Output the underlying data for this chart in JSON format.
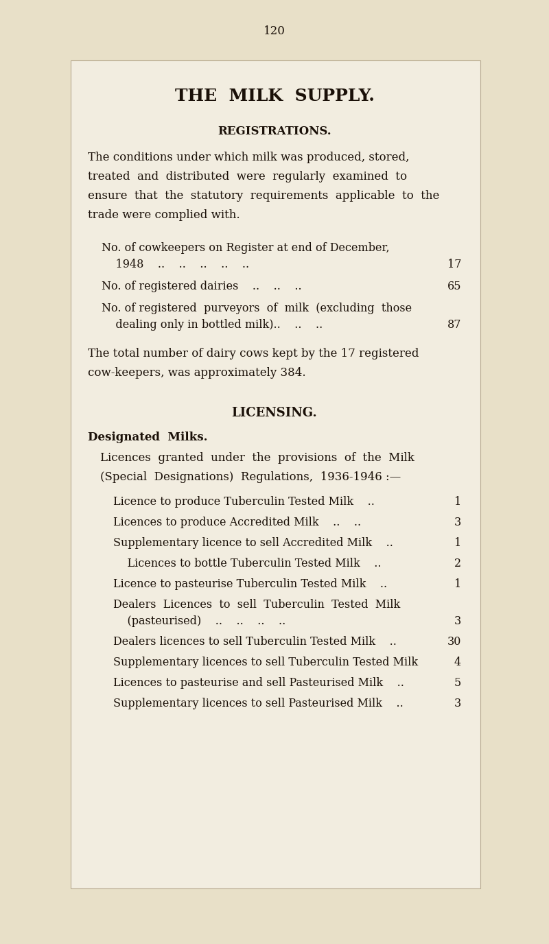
{
  "bg_color": "#ede8d5",
  "outer_bg": "#e8e0c8",
  "box_bg": "#f2ede0",
  "text_color": "#1a1008",
  "page_number": "120",
  "title": "THE  MILK  SUPPLY.",
  "section1_heading": "REGISTRATIONS.",
  "body_line1": "The conditions under which milk was produced, stored,",
  "body_line2": "treated  and  distributed  were  regularly  examined  to",
  "body_line3": "ensure  that  the  statutory  requirements  applicable  to  the",
  "body_line4": "trade were complied with.",
  "reg1_line1": "No. of cowkeepers on Register at end of December,",
  "reg1_line2": "    1948    ..    ..    ..    ..    ..",
  "reg1_val": "17",
  "reg2_line1": "No. of registered dairies    ..    ..    ..",
  "reg2_val": "65",
  "reg3_line1": "No. of registered  purveyors  of  milk  (excluding  those",
  "reg3_line2": "    dealing only in bottled milk)..    ..    ..",
  "reg3_val": "87",
  "cows_line1": "The total number of dairy cows kept by the 17 registered",
  "cows_line2": "cow-keepers, was approximately 384.",
  "section2_heading": "LICENSING.",
  "section2_subheading": "Designated  Milks.",
  "intro_line1": "Licences  granted  under  the  provisions  of  the  Milk",
  "intro_line2": "(Special  Designations)  Regulations,  1936-1946 :—",
  "lic_items": [
    {
      "line1": "Licence to produce Tuberculin Tested Milk    ..",
      "line2": "",
      "val": "1"
    },
    {
      "line1": "Licences to produce Accredited Milk    ..    ..",
      "line2": "",
      "val": "3"
    },
    {
      "line1": "Supplementary licence to sell Accredited Milk    ..",
      "line2": "",
      "val": "1"
    },
    {
      "line1": "    Licences to bottle Tuberculin Tested Milk    ..",
      "line2": "",
      "val": "2"
    },
    {
      "line1": "Licence to pasteurise Tuberculin Tested Milk    ..",
      "line2": "",
      "val": "1"
    },
    {
      "line1": "Dealers  Licences  to  sell  Tuberculin  Tested  Milk",
      "line2": "    (pasteurised)    ..    ..    ..    ..",
      "val": "3"
    },
    {
      "line1": "Dealers licences to sell Tuberculin Tested Milk    ..",
      "line2": "",
      "val": "30"
    },
    {
      "line1": "Supplementary licences to sell Tuberculin Tested Milk",
      "line2": "",
      "val": "4"
    },
    {
      "line1": "Licences to pasteurise and sell Pasteurised Milk    ..",
      "line2": "",
      "val": "5"
    },
    {
      "line1": "Supplementary licences to sell Pasteurised Milk    ..",
      "line2": "",
      "val": "3"
    }
  ]
}
